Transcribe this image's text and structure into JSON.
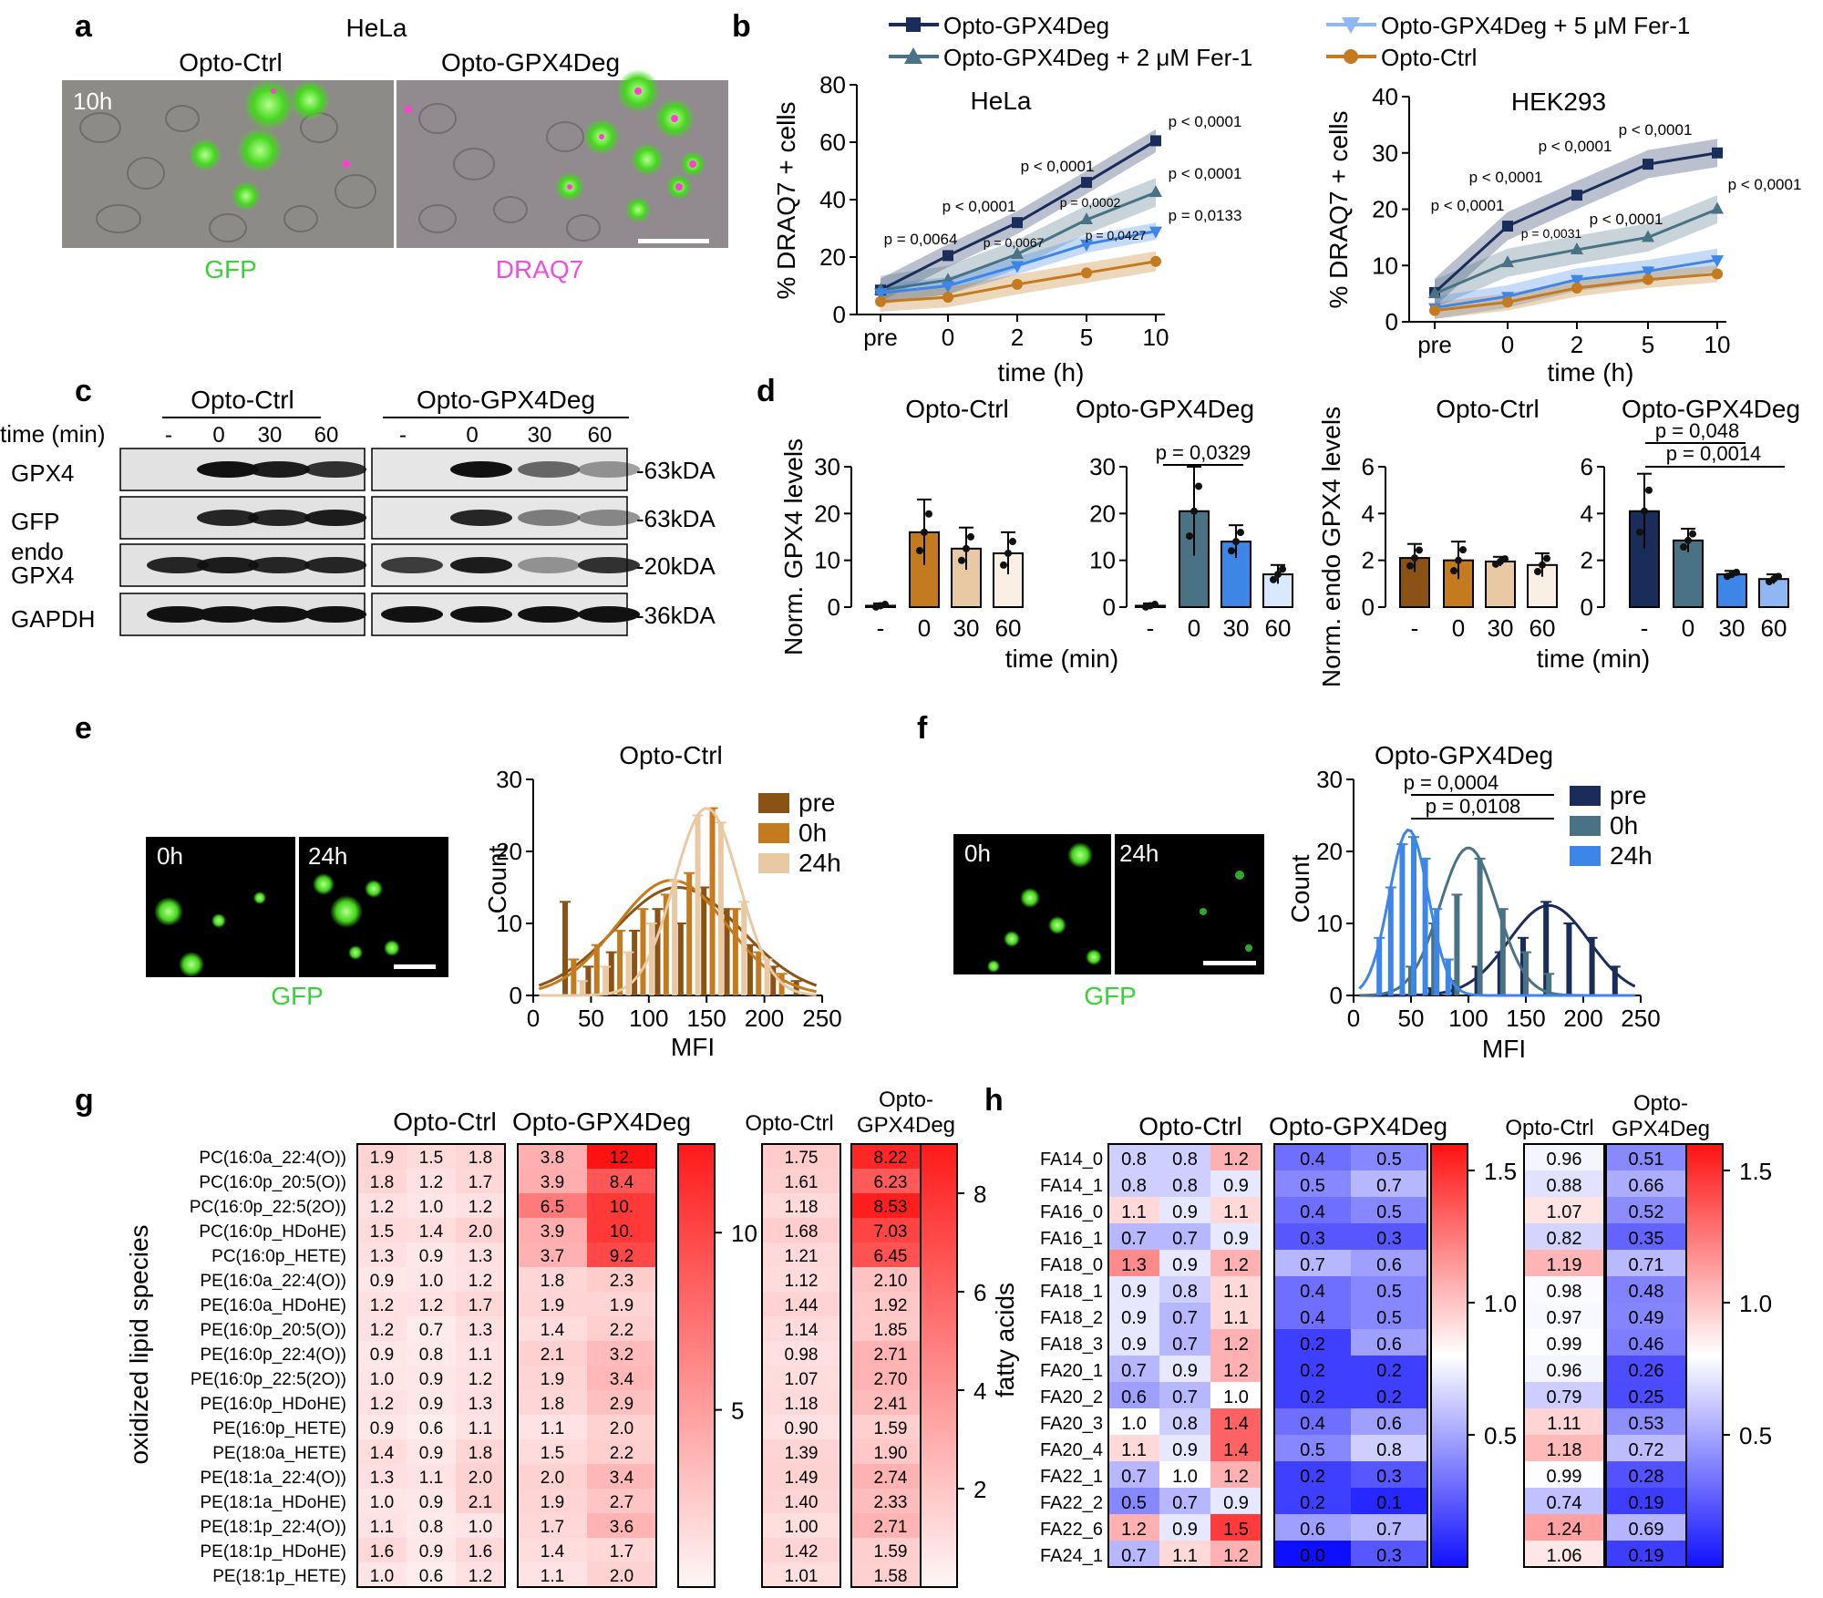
{
  "panel_letters": {
    "a": "a",
    "b": "b",
    "c": "c",
    "d": "d",
    "e": "e",
    "f": "f",
    "g": "g",
    "h": "h"
  },
  "colors": {
    "navy": "#1a2d5a",
    "teal": "#4a7285",
    "blue": "#3d86e8",
    "lightblue": "#8fb8f2",
    "orange": "#c47a1e",
    "brown": "#8a5214",
    "tan": "#e9c9a3",
    "cream": "#f9efe4",
    "green": "#39d13a",
    "magenta": "#ee4fdb"
  },
  "panel_a": {
    "cell_line": "HeLa",
    "ctrl_label": "Opto-Ctrl",
    "deg_label": "Opto-GPX4Deg",
    "time_label": "10h",
    "gfp_label": "GFP",
    "draq7_label": "DRAQ7"
  },
  "panel_b": {
    "legend": [
      "Opto-GPX4Deg",
      "Opto-GPX4Deg + 2 μM Fer-1",
      "Opto-GPX4Deg + 5 μM Fer-1",
      "Opto-Ctrl"
    ],
    "xlabel": "time (h)",
    "ylabel": "% DRAQ7 + cells"
  },
  "panel_c": {
    "group1": "Opto-Ctrl",
    "group2": "Opto-GPX4Deg",
    "time_label": "time (min)",
    "times": [
      "-",
      "0",
      "30",
      "60"
    ],
    "rows": [
      "GPX4",
      "GFP",
      "endo\nGPX4",
      "GAPDH"
    ],
    "row_labels": [
      "GPX4",
      "GFP",
      "endo",
      "GPX4",
      "GAPDH"
    ],
    "sizes": [
      "-63kDA",
      "-63kDA",
      "-20kDA",
      "-36kDA"
    ]
  },
  "panel_d": {
    "ctrl_title": "Opto-Ctrl",
    "deg_title": "Opto-GPX4Deg",
    "ylabel1": "Norm. GPX4 levels",
    "ylabel2": "Norm. endo GPX4 levels",
    "xlabel": "time (min)",
    "p1": "p = 0,0329",
    "p2": "p = 0,048",
    "p3": "p = 0,0014"
  },
  "panel_e": {
    "title": "Opto-Ctrl",
    "t0": "0h",
    "t24": "24h",
    "gfp": "GFP",
    "xlabel": "MFI",
    "ylabel": "Count",
    "legend": [
      "pre",
      "0h",
      "24h"
    ]
  },
  "panel_f": {
    "title": "Opto-GPX4Deg",
    "t0": "0h",
    "t24": "24h",
    "gfp": "GFP",
    "xlabel": "MFI",
    "ylabel": "Count",
    "legend": [
      "pre",
      "0h",
      "24h"
    ],
    "p1": "p = 0,0004",
    "p2": "p = 0,0108"
  },
  "panel_g": {
    "ctrl": "Opto-Ctrl",
    "deg": "Opto-GPX4Deg",
    "ctrl2": "Opto-Ctrl",
    "deg2a": "Opto-",
    "deg2b": "GPX4Deg",
    "ylabel": "oxidized lipid species"
  },
  "panel_h": {
    "ctrl": "Opto-Ctrl",
    "deg": "Opto-GPX4Deg",
    "ctrl2": "Opto-Ctrl",
    "deg2a": "Opto-",
    "deg2b": "GPX4Deg",
    "ylabel": "fatty acids"
  },
  "chart_data": [
    {
      "id": "b_hela",
      "type": "line",
      "title": "HeLa",
      "categories": [
        "pre",
        "0",
        "2",
        "5",
        "10"
      ],
      "xlabel": "time (h)",
      "ylabel": "% DRAQ7 + cells",
      "ylim": [
        0,
        80
      ],
      "yticks": [
        0,
        20,
        40,
        60,
        80
      ],
      "series": [
        {
          "name": "Opto-GPX4Deg",
          "color": "#1a2d5a",
          "marker": "square",
          "values": [
            8.5,
            20.5,
            32,
            46,
            60.5
          ],
          "band": 4
        },
        {
          "name": "Opto-GPX4Deg + 2 μM Fer-1",
          "color": "#4a7285",
          "marker": "triangle",
          "values": [
            8.5,
            12,
            21,
            33,
            42.5
          ],
          "band": 5
        },
        {
          "name": "Opto-GPX4Deg + 5 μM Fer-1",
          "color": "#3d86e8",
          "marker": "itriangle",
          "values": [
            7.5,
            10,
            17,
            24.5,
            29
          ],
          "band": 3
        },
        {
          "name": "Opto-Ctrl",
          "color": "#c47a1e",
          "marker": "circle",
          "values": [
            4.5,
            6,
            10.5,
            14.5,
            18.5
          ],
          "band": 3.5
        }
      ],
      "annotations": [
        "p = 0,0064",
        "p < 0,0001",
        "p = 0,0067",
        "p < 0,0001",
        "p = 0,0002",
        "p = 0,0427",
        "p < 0,0001",
        "p < 0,0001",
        "p = 0,0133"
      ]
    },
    {
      "id": "b_hek",
      "type": "line",
      "title": "HEK293",
      "categories": [
        "pre",
        "0",
        "2",
        "5",
        "10"
      ],
      "xlabel": "time (h)",
      "ylabel": "% DRAQ7 + cells",
      "ylim": [
        0,
        40
      ],
      "yticks": [
        0,
        10,
        20,
        30,
        40
      ],
      "series": [
        {
          "name": "Opto-GPX4Deg",
          "color": "#1a2d5a",
          "marker": "square",
          "values": [
            5.2,
            17,
            22.5,
            28,
            30
          ],
          "band": 2.5
        },
        {
          "name": "Opto-GPX4Deg + 2 μM Fer-1",
          "color": "#4a7285",
          "marker": "triangle",
          "values": [
            5,
            10.5,
            12.8,
            15,
            20
          ],
          "band": 2.5
        },
        {
          "name": "Opto-GPX4Deg + 5 μM Fer-1",
          "color": "#3d86e8",
          "marker": "itriangle",
          "values": [
            2.5,
            4.5,
            7.5,
            9,
            11
          ],
          "band": 2
        },
        {
          "name": "Opto-Ctrl",
          "color": "#c47a1e",
          "marker": "circle",
          "values": [
            2,
            3.5,
            6,
            7.5,
            8.5
          ],
          "band": 1.5
        }
      ],
      "annotations": [
        "p < 0,0001",
        "p < 0,0001",
        "p = 0,0031",
        "p < 0,0001",
        "p < 0,0001",
        "p < 0,0001",
        "p < 0,0001"
      ]
    },
    {
      "id": "d1",
      "type": "bar",
      "title": "Opto-Ctrl",
      "categories": [
        "-",
        "0",
        "30",
        "60"
      ],
      "values": [
        0.3,
        16,
        12.5,
        11.5
      ],
      "err": [
        0.5,
        7,
        4.5,
        4.5
      ],
      "ylim": [
        0,
        30
      ],
      "yticks": [
        0,
        10,
        20,
        30
      ],
      "ylabel": "Norm. GPX4 levels"
    },
    {
      "id": "d2",
      "type": "bar",
      "title": "Opto-GPX4Deg",
      "categories": [
        "-",
        "0",
        "30",
        "60"
      ],
      "values": [
        0.3,
        20.5,
        14,
        7
      ],
      "err": [
        0.5,
        9.5,
        3.5,
        2
      ],
      "ylim": [
        0,
        30
      ],
      "yticks": [
        0,
        10,
        20,
        30
      ],
      "xlabel": "time (min)"
    },
    {
      "id": "d3",
      "type": "bar",
      "title": "Opto-Ctrl",
      "categories": [
        "-",
        "0",
        "30",
        "60"
      ],
      "values": [
        2.1,
        2,
        1.95,
        1.8
      ],
      "err": [
        0.6,
        0.8,
        0.2,
        0.5
      ],
      "ylim": [
        0,
        6
      ],
      "yticks": [
        0,
        2,
        4,
        6
      ],
      "ylabel": "Norm. endo GPX4 levels"
    },
    {
      "id": "d4",
      "type": "bar",
      "title": "Opto-GPX4Deg",
      "categories": [
        "-",
        "0",
        "30",
        "60"
      ],
      "values": [
        4.1,
        2.85,
        1.4,
        1.2
      ],
      "err": [
        1.6,
        0.5,
        0.15,
        0.2
      ],
      "ylim": [
        0,
        6
      ],
      "yticks": [
        0,
        2,
        4,
        6
      ],
      "xlabel": "time (min)"
    },
    {
      "id": "e_hist",
      "type": "bar",
      "title": "Opto-Ctrl",
      "xlabel": "MFI",
      "ylabel": "Count",
      "xlim": [
        0,
        250
      ],
      "ylim": [
        0,
        30
      ],
      "xticks": [
        0,
        50,
        100,
        150,
        200,
        250
      ],
      "yticks": [
        0,
        10,
        20,
        30
      ],
      "series": [
        {
          "name": "pre",
          "color": "#8a5214",
          "x": [
            30,
            50,
            70,
            90,
            110,
            130,
            150,
            170,
            190,
            210,
            230
          ],
          "values": [
            13,
            4,
            6,
            9,
            12,
            10,
            15,
            12,
            7,
            4,
            2
          ],
          "fit": {
            "mu": 125,
            "sigma": 55,
            "amp": 15
          }
        },
        {
          "name": "0h",
          "color": "#c47a1e",
          "x": [
            35,
            55,
            75,
            95,
            115,
            135,
            155,
            175,
            195,
            215
          ],
          "values": [
            5,
            7,
            9,
            12,
            14,
            17,
            26,
            12,
            6,
            3
          ],
          "fit": {
            "mu": 120,
            "sigma": 48,
            "amp": 16
          }
        },
        {
          "name": "24h",
          "color": "#e9c9a3",
          "x": [
            40,
            60,
            80,
            100,
            120,
            140,
            160,
            180,
            200
          ],
          "values": [
            2,
            4,
            6,
            10,
            16,
            25,
            24,
            13,
            5
          ],
          "fit": {
            "mu": 150,
            "sigma": 28,
            "amp": 26
          }
        }
      ]
    },
    {
      "id": "f_hist",
      "type": "bar",
      "title": "Opto-GPX4Deg",
      "xlabel": "MFI",
      "ylabel": "Count",
      "xlim": [
        0,
        250
      ],
      "ylim": [
        0,
        30
      ],
      "xticks": [
        0,
        50,
        100,
        150,
        200,
        250
      ],
      "yticks": [
        0,
        10,
        20,
        30
      ],
      "series": [
        {
          "name": "pre",
          "color": "#1a2d5a",
          "x": [
            70,
            90,
            110,
            130,
            150,
            170,
            190,
            210,
            230
          ],
          "values": [
            1,
            2,
            4,
            6,
            8,
            13,
            10,
            8,
            4
          ],
          "fit": {
            "mu": 170,
            "sigma": 35,
            "amp": 12.5
          }
        },
        {
          "name": "0h",
          "color": "#4a7285",
          "x": [
            50,
            70,
            90,
            110,
            130,
            150,
            170
          ],
          "values": [
            4,
            10,
            14,
            19,
            12,
            6,
            3
          ],
          "fit": {
            "mu": 100,
            "sigma": 25,
            "amp": 20.5
          }
        },
        {
          "name": "24h",
          "color": "#3d86e8",
          "x": [
            20,
            30,
            40,
            50,
            60,
            70,
            80
          ],
          "values": [
            8,
            15,
            21,
            22,
            19,
            12,
            5
          ],
          "fit": {
            "mu": 48,
            "sigma": 17,
            "amp": 23
          }
        }
      ]
    },
    {
      "id": "g_heat",
      "type": "heatmap",
      "rows": [
        "PC(16:0a_22:4(O))",
        "PC(16:0p_20:5(O))",
        "PC(16:0p_22:5(2O))",
        "PC(16:0p_HDoHE)",
        "PC(16:0p_HETE)",
        "PE(16:0a_22:4(O))",
        "PE(16:0a_HDoHE)",
        "PE(16:0p_20:5(O))",
        "PE(16:0p_22:4(O))",
        "PE(16:0p_22:5(2O))",
        "PE(16:0p_HDoHE)",
        "PE(16:0p_HETE)",
        "PE(18:0a_HETE)",
        "PE(18:1a_22:4(O))",
        "PE(18:1a_HDoHE)",
        "PE(18:1p_22:4(O))",
        "PE(18:1p_HDoHE)",
        "PE(18:1p_HETE)"
      ],
      "ctrl": [
        [
          "1.9",
          "1.5",
          "1.8"
        ],
        [
          "1.8",
          "1.2",
          "1.7"
        ],
        [
          "1.2",
          "1.0",
          "1.2"
        ],
        [
          "1.5",
          "1.4",
          "2.0"
        ],
        [
          "1.3",
          "0.9",
          "1.3"
        ],
        [
          "0.9",
          "1.0",
          "1.2"
        ],
        [
          "1.2",
          "1.2",
          "1.7"
        ],
        [
          "1.2",
          "0.7",
          "1.3"
        ],
        [
          "0.9",
          "0.8",
          "1.1"
        ],
        [
          "1.0",
          "0.9",
          "1.2"
        ],
        [
          "1.2",
          "0.9",
          "1.3"
        ],
        [
          "0.9",
          "0.6",
          "1.1"
        ],
        [
          "1.4",
          "0.9",
          "1.8"
        ],
        [
          "1.3",
          "1.1",
          "2.0"
        ],
        [
          "1.0",
          "0.9",
          "2.1"
        ],
        [
          "1.1",
          "0.8",
          "1.0"
        ],
        [
          "1.6",
          "0.9",
          "1.6"
        ],
        [
          "1.0",
          "0.6",
          "1.2"
        ]
      ],
      "deg": [
        [
          "3.8",
          "12."
        ],
        [
          "3.9",
          "8.4"
        ],
        [
          "6.5",
          "10."
        ],
        [
          "3.9",
          "10."
        ],
        [
          "3.7",
          "9.2"
        ],
        [
          "1.8",
          "2.3"
        ],
        [
          "1.9",
          "1.9"
        ],
        [
          "1.4",
          "2.2"
        ],
        [
          "2.1",
          "3.2"
        ],
        [
          "1.9",
          "3.4"
        ],
        [
          "1.8",
          "2.9"
        ],
        [
          "1.1",
          "2.0"
        ],
        [
          "1.5",
          "2.2"
        ],
        [
          "2.0",
          "3.4"
        ],
        [
          "1.9",
          "2.7"
        ],
        [
          "1.7",
          "3.6"
        ],
        [
          "1.4",
          "1.7"
        ],
        [
          "1.1",
          "2.0"
        ]
      ],
      "ctrl_mean": [
        "1.75",
        "1.61",
        "1.18",
        "1.68",
        "1.21",
        "1.12",
        "1.44",
        "1.14",
        "0.98",
        "1.07",
        "1.18",
        "0.90",
        "1.39",
        "1.49",
        "1.40",
        "1.00",
        "1.42",
        "1.01"
      ],
      "deg_mean": [
        "8.22",
        "6.23",
        "8.53",
        "7.03",
        "6.45",
        "2.10",
        "1.92",
        "1.85",
        "2.71",
        "2.70",
        "2.41",
        "1.59",
        "1.90",
        "2.74",
        "2.33",
        "2.71",
        "1.59",
        "1.58"
      ],
      "scale1": {
        "min": 0,
        "max": 12,
        "ticks": [
          "5",
          "10"
        ]
      },
      "scale2": {
        "min": 0,
        "max": 9,
        "ticks": [
          "2",
          "4",
          "6",
          "8"
        ]
      }
    },
    {
      "id": "h_heat",
      "type": "heatmap",
      "rows": [
        "FA14_0",
        "FA14_1",
        "FA16_0",
        "FA16_1",
        "FA18_0",
        "FA18_1",
        "FA18_2",
        "FA18_3",
        "FA20_1",
        "FA20_2",
        "FA20_3",
        "FA20_4",
        "FA22_1",
        "FA22_2",
        "FA22_6",
        "FA24_1"
      ],
      "ctrl": [
        [
          "0.8",
          "0.8",
          "1.2"
        ],
        [
          "0.8",
          "0.8",
          "0.9"
        ],
        [
          "1.1",
          "0.9",
          "1.1"
        ],
        [
          "0.7",
          "0.7",
          "0.9"
        ],
        [
          "1.3",
          "0.9",
          "1.2"
        ],
        [
          "0.9",
          "0.8",
          "1.1"
        ],
        [
          "0.9",
          "0.7",
          "1.1"
        ],
        [
          "0.9",
          "0.7",
          "1.2"
        ],
        [
          "0.7",
          "0.9",
          "1.2"
        ],
        [
          "0.6",
          "0.7",
          "1.0"
        ],
        [
          "1.0",
          "0.8",
          "1.4"
        ],
        [
          "1.1",
          "0.9",
          "1.4"
        ],
        [
          "0.7",
          "1.0",
          "1.2"
        ],
        [
          "0.5",
          "0.7",
          "0.9"
        ],
        [
          "1.2",
          "0.9",
          "1.5"
        ],
        [
          "0.7",
          "1.1",
          "1.2"
        ]
      ],
      "deg": [
        [
          "0.4",
          "0.5"
        ],
        [
          "0.5",
          "0.7"
        ],
        [
          "0.4",
          "0.5"
        ],
        [
          "0.3",
          "0.3"
        ],
        [
          "0.7",
          "0.6"
        ],
        [
          "0.4",
          "0.5"
        ],
        [
          "0.4",
          "0.5"
        ],
        [
          "0.2",
          "0.6"
        ],
        [
          "0.2",
          "0.2"
        ],
        [
          "0.2",
          "0.2"
        ],
        [
          "0.4",
          "0.6"
        ],
        [
          "0.5",
          "0.8"
        ],
        [
          "0.2",
          "0.3"
        ],
        [
          "0.2",
          "0.1"
        ],
        [
          "0.6",
          "0.7"
        ],
        [
          "0.0",
          "0.3"
        ]
      ],
      "ctrl_mean": [
        "0.96",
        "0.88",
        "1.07",
        "0.82",
        "1.19",
        "0.98",
        "0.97",
        "0.99",
        "0.96",
        "0.79",
        "1.11",
        "1.18",
        "0.99",
        "0.74",
        "1.24",
        "1.06"
      ],
      "deg_mean": [
        "0.51",
        "0.66",
        "0.52",
        "0.35",
        "0.71",
        "0.48",
        "0.49",
        "0.46",
        "0.26",
        "0.25",
        "0.53",
        "0.72",
        "0.28",
        "0.19",
        "0.69",
        "0.19"
      ],
      "scale": {
        "min": 0,
        "max": 1.6,
        "ticks": [
          "0.5",
          "1.0",
          "1.5"
        ]
      }
    }
  ]
}
